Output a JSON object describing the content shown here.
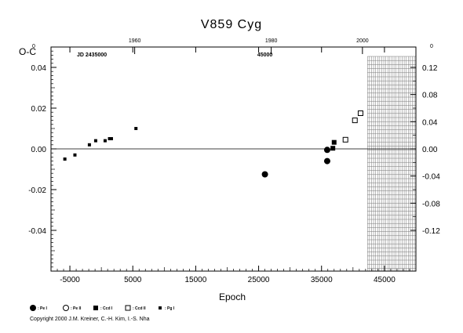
{
  "chart_data": {
    "type": "scatter",
    "title": "V859 Cyg",
    "ylabel": "O-C",
    "xlabel": "Epoch",
    "xlim": [
      -8000,
      50000
    ],
    "ylim": [
      -0.06,
      0.05
    ],
    "x_ticks": [
      -5000,
      5000,
      15000,
      25000,
      35000,
      45000
    ],
    "x_tick_labels": [
      "-5000",
      "5000",
      "15000",
      "25000",
      "35000",
      "45000"
    ],
    "y_ticks": [
      -0.04,
      -0.02,
      0.0,
      0.02,
      0.04
    ],
    "y_tick_labels": [
      "-0.04",
      "-0.02",
      "0.00",
      "0.02",
      "0.04"
    ],
    "y_right_ticks": [
      -0.12,
      -0.08,
      -0.04,
      0.0,
      0.04,
      0.08,
      0.12
    ],
    "y_right_tick_labels": [
      "-0.12",
      "-0.08",
      "-0.04",
      "0.00",
      "0.04",
      "0.08",
      "0.12"
    ],
    "top_axis": {
      "year_labels": [
        "1960",
        "1980",
        "2000"
      ],
      "year_label_epochs": [
        5300,
        27000,
        41500
      ],
      "jd_label": "JD 2435000",
      "jd_mid_label": "45000",
      "jd_mid_epoch": 26000,
      "left_exponent": "0",
      "right_exponent": "0"
    },
    "shaded_region": {
      "x_from": 42300,
      "x_to": 50000
    },
    "series": [
      {
        "name": "Pe I",
        "marker": "filled-circle",
        "points": [
          [
            26000,
            -0.0125
          ],
          [
            35900,
            -0.0005
          ],
          [
            35900,
            -0.006
          ]
        ]
      },
      {
        "name": "Pe II",
        "marker": "open-circle",
        "points": []
      },
      {
        "name": "Ccd I",
        "marker": "filled-square",
        "points": [
          [
            36800,
            0.0003
          ],
          [
            37000,
            0.0032
          ]
        ]
      },
      {
        "name": "Ccd II",
        "marker": "open-square",
        "points": [
          [
            38800,
            0.0045
          ],
          [
            40300,
            0.014
          ],
          [
            41200,
            0.0175
          ]
        ]
      },
      {
        "name": "Pg I",
        "marker": "small-filled-square",
        "points": [
          [
            -5800,
            -0.005
          ],
          [
            -4200,
            -0.003
          ],
          [
            -1900,
            0.002
          ],
          [
            -900,
            0.004
          ],
          [
            600,
            0.004
          ],
          [
            1300,
            0.005
          ],
          [
            1600,
            0.005
          ],
          [
            5500,
            0.01
          ]
        ]
      }
    ],
    "legend": [
      {
        "marker": "filled-circle",
        "label": ": Pe I"
      },
      {
        "marker": "open-circle",
        "label": ": Pe II"
      },
      {
        "marker": "filled-square",
        "label": ": Ccd I"
      },
      {
        "marker": "open-square",
        "label": ": Ccd II"
      },
      {
        "marker": "small-filled-square",
        "label": ": Pg I"
      }
    ]
  },
  "copyright": "Copyright 2000 J.M. Kreiner, C.-H. Kim, I.-S. Nha"
}
